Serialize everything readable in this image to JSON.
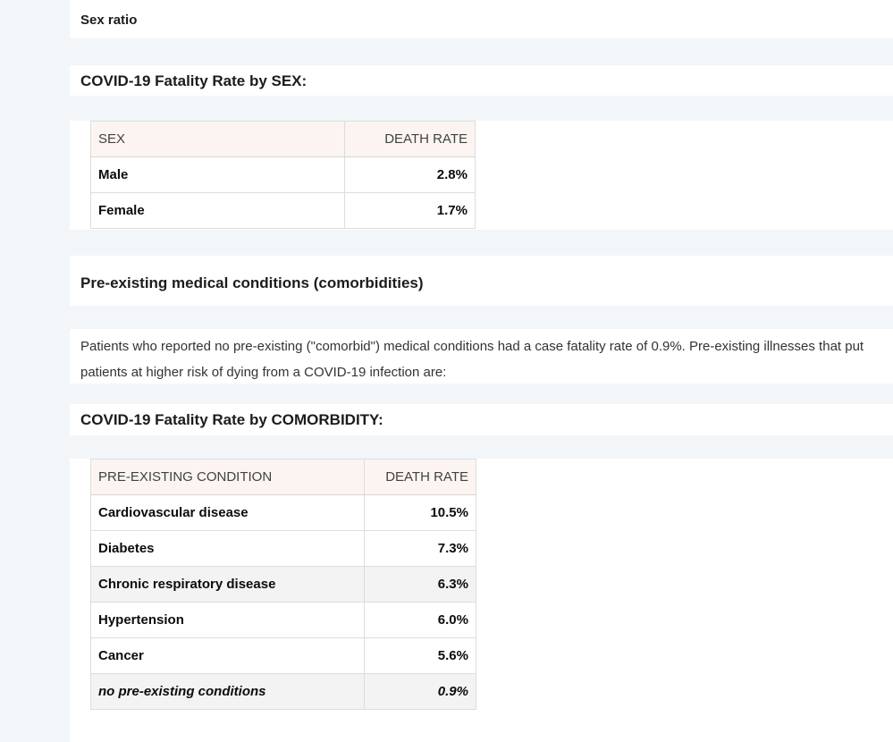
{
  "headings": {
    "sex_ratio": "Sex ratio",
    "fatality_by_sex": "COVID-19 Fatality Rate by SEX:",
    "comorbidities": "Pre-existing medical conditions (comorbidities)",
    "fatality_by_comorbidity": "COVID-19 Fatality Rate by COMORBIDITY:"
  },
  "paragraph": "Patients who reported no pre-existing (\"comorbid\") medical conditions had a case fatality rate of 0.9%. Pre-existing illnesses that put patients at higher risk of dying from a COVID-19 infection are:",
  "sex_table": {
    "headers": [
      "SEX",
      "DEATH RATE"
    ],
    "rows": [
      {
        "label": "Male",
        "value": "2.8%"
      },
      {
        "label": "Female",
        "value": "1.7%"
      }
    ]
  },
  "comorbidity_table": {
    "headers": [
      "PRE-EXISTING CONDITION",
      "DEATH RATE"
    ],
    "rows": [
      {
        "label": "Cardiovascular disease",
        "value": "10.5%"
      },
      {
        "label": "Diabetes",
        "value": "7.3%"
      },
      {
        "label": "Chronic respiratory disease",
        "value": "6.3%"
      },
      {
        "label": "Hypertension",
        "value": "6.0%"
      },
      {
        "label": "Cancer",
        "value": "5.6%"
      },
      {
        "label": "no pre-existing conditions",
        "value": "0.9%"
      }
    ]
  },
  "colors": {
    "page_background": "#f2f6f9",
    "block_background": "#ffffff",
    "table_header_background": "#fbf4f1",
    "shaded_row_background": "#f3f3f3",
    "border": "#dddddd",
    "text": "#1c1c1c"
  }
}
